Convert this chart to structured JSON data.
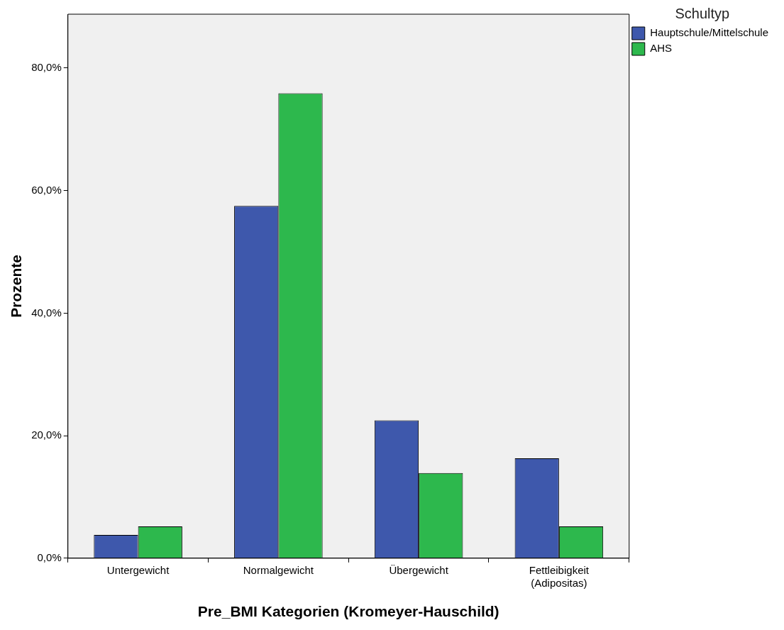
{
  "chart_data": {
    "type": "bar",
    "xlabel": "Pre_BMI Kategorien (Kromeyer-Hauschild)",
    "ylabel": "Prozente",
    "legend_title": "Schultyp",
    "legend": "top right",
    "categories": [
      "Untergewicht",
      "Normalgewicht",
      "Übergewicht",
      "Fettleibigkeit\n(Adipositas)"
    ],
    "series": [
      {
        "name": "Hauptschule/Mittelschule",
        "color": "#3e58ac",
        "values": [
          3.8,
          57.5,
          22.5,
          16.3
        ]
      },
      {
        "name": "AHS",
        "color": "#2db84d",
        "values": [
          5.2,
          75.9,
          13.9,
          5.2
        ]
      }
    ],
    "ylim": [
      0,
      88.8
    ],
    "yticks": [
      {
        "value": 0,
        "label": "0,0%"
      },
      {
        "value": 20,
        "label": "20,0%"
      },
      {
        "value": 40,
        "label": "40,0%"
      },
      {
        "value": 60,
        "label": "60,0%"
      },
      {
        "value": 80,
        "label": "80,0%"
      }
    ],
    "grid": false
  }
}
